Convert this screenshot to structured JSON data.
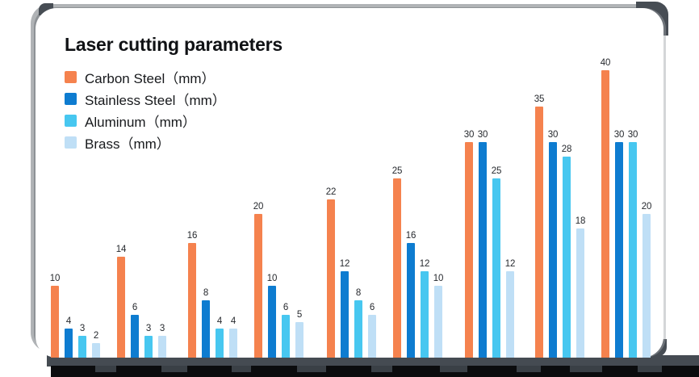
{
  "chart_data": {
    "type": "bar",
    "title": "Laser cutting parameters",
    "legend_position": "top-left",
    "grid": false,
    "axes_visible": false,
    "value_labels": true,
    "group_count": 9,
    "unit": "mm",
    "series": [
      {
        "name": "Carbon Steel（mm）",
        "color": "#F5824E",
        "values": [
          10,
          14,
          16,
          20,
          22,
          25,
          30,
          35,
          40
        ]
      },
      {
        "name": "Stainless Steel（mm）",
        "color": "#0E7CD0",
        "values": [
          4,
          6,
          8,
          10,
          12,
          16,
          30,
          30,
          30
        ]
      },
      {
        "name": "Aluminum（mm）",
        "color": "#47C7F0",
        "values": [
          3,
          3,
          4,
          6,
          8,
          12,
          25,
          28,
          30
        ]
      },
      {
        "name": "Brass（mm）",
        "color": "#BFDFF6",
        "values": [
          2,
          3,
          4,
          5,
          6,
          10,
          12,
          18,
          20
        ]
      }
    ]
  }
}
